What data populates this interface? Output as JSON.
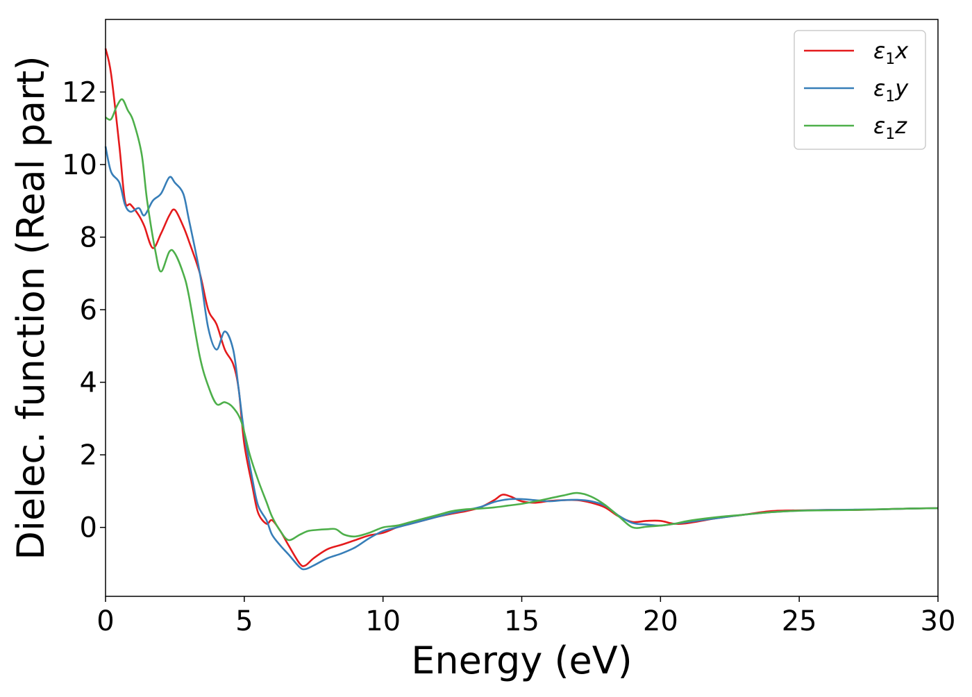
{
  "chart_data": {
    "type": "line",
    "xlabel": "Energy (eV)",
    "ylabel": "Dielec. function (Real part)",
    "xlim": [
      0,
      30
    ],
    "ylim": [
      -1.9,
      14.0
    ],
    "x_ticks": [
      "0",
      "5",
      "10",
      "15",
      "20",
      "25",
      "30"
    ],
    "y_ticks": [
      "0",
      "2",
      "4",
      "6",
      "8",
      "10",
      "12"
    ],
    "grid": false,
    "legend_position": "top-right",
    "series": [
      {
        "name": "ε₁x",
        "legend_base": "ε",
        "legend_sub": "1",
        "legend_suffix": "x",
        "color": "#e41a1c",
        "x": [
          0,
          0.2,
          0.5,
          0.7,
          0.9,
          1.2,
          1.4,
          1.7,
          2.0,
          2.3,
          2.5,
          2.8,
          3.0,
          3.4,
          3.7,
          4.0,
          4.3,
          4.6,
          4.8,
          5.0,
          5.3,
          5.5,
          5.8,
          6.0,
          6.3,
          6.6,
          7.0,
          7.2,
          7.5,
          8.0,
          8.5,
          9.0,
          9.5,
          10.0,
          10.5,
          11.0,
          11.5,
          12.0,
          12.5,
          13.0,
          13.5,
          14.0,
          14.3,
          14.6,
          15.0,
          15.5,
          16.0,
          16.5,
          17.0,
          17.5,
          18.0,
          18.5,
          19.0,
          19.5,
          20.0,
          20.5,
          21.0,
          22.0,
          23.0,
          24.0,
          25.0,
          26.0,
          27.0,
          28.0,
          29.0,
          30.0
        ],
        "y": [
          13.2,
          12.5,
          10.5,
          9.0,
          8.9,
          8.6,
          8.3,
          7.7,
          8.1,
          8.6,
          8.75,
          8.3,
          7.9,
          7.0,
          6.0,
          5.6,
          4.9,
          4.5,
          3.8,
          2.3,
          1.1,
          0.4,
          0.1,
          0.2,
          -0.1,
          -0.5,
          -1.0,
          -1.05,
          -0.85,
          -0.6,
          -0.48,
          -0.35,
          -0.22,
          -0.15,
          0.0,
          0.1,
          0.2,
          0.3,
          0.38,
          0.45,
          0.55,
          0.75,
          0.9,
          0.85,
          0.72,
          0.68,
          0.73,
          0.75,
          0.75,
          0.68,
          0.55,
          0.3,
          0.15,
          0.18,
          0.18,
          0.1,
          0.12,
          0.25,
          0.35,
          0.45,
          0.47,
          0.48,
          0.48,
          0.5,
          0.52,
          0.53
        ]
      },
      {
        "name": "ε₁y",
        "legend_base": "ε",
        "legend_sub": "1",
        "legend_suffix": "y",
        "color": "#377eb8",
        "x": [
          0,
          0.2,
          0.5,
          0.7,
          0.9,
          1.2,
          1.4,
          1.7,
          2.0,
          2.3,
          2.5,
          2.8,
          3.0,
          3.4,
          3.7,
          4.0,
          4.3,
          4.6,
          4.8,
          5.0,
          5.3,
          5.5,
          5.8,
          6.0,
          6.3,
          6.6,
          7.0,
          7.2,
          7.5,
          8.0,
          8.5,
          9.0,
          9.5,
          10.0,
          10.5,
          11.0,
          11.5,
          12.0,
          12.5,
          13.0,
          13.5,
          14.0,
          14.3,
          14.6,
          15.0,
          15.5,
          16.0,
          16.5,
          17.0,
          17.5,
          18.0,
          18.5,
          19.0,
          19.5,
          20.0,
          20.5,
          21.0,
          22.0,
          23.0,
          24.0,
          25.0,
          26.0,
          27.0,
          28.0,
          29.0,
          30.0
        ],
        "y": [
          10.5,
          9.8,
          9.5,
          8.9,
          8.7,
          8.8,
          8.6,
          9.0,
          9.2,
          9.65,
          9.5,
          9.2,
          8.5,
          7.0,
          5.5,
          4.9,
          5.4,
          4.9,
          3.8,
          2.6,
          1.3,
          0.6,
          0.2,
          -0.2,
          -0.5,
          -0.75,
          -1.1,
          -1.15,
          -1.05,
          -0.85,
          -0.72,
          -0.55,
          -0.3,
          -0.1,
          0.0,
          0.1,
          0.2,
          0.3,
          0.4,
          0.48,
          0.56,
          0.7,
          0.75,
          0.78,
          0.78,
          0.75,
          0.72,
          0.75,
          0.76,
          0.72,
          0.6,
          0.32,
          0.12,
          0.08,
          0.05,
          0.1,
          0.15,
          0.25,
          0.35,
          0.42,
          0.46,
          0.48,
          0.49,
          0.5,
          0.52,
          0.53
        ]
      },
      {
        "name": "ε₁z",
        "legend_base": "ε",
        "legend_sub": "1",
        "legend_suffix": "z",
        "color": "#4daf4a",
        "x": [
          0,
          0.2,
          0.4,
          0.6,
          0.8,
          1.0,
          1.3,
          1.5,
          1.8,
          2.0,
          2.3,
          2.5,
          2.8,
          3.0,
          3.4,
          3.7,
          4.0,
          4.3,
          4.6,
          4.9,
          5.2,
          5.5,
          5.8,
          6.0,
          6.3,
          6.6,
          7.0,
          7.3,
          7.6,
          8.0,
          8.3,
          8.6,
          9.0,
          9.5,
          10.0,
          10.5,
          11.0,
          11.5,
          12.0,
          12.5,
          13.0,
          13.5,
          14.0,
          14.5,
          15.0,
          15.5,
          16.0,
          16.5,
          17.0,
          17.5,
          18.0,
          18.5,
          19.0,
          19.5,
          20.0,
          20.5,
          21.0,
          22.0,
          23.0,
          24.0,
          25.0,
          26.0,
          27.0,
          28.0,
          29.0,
          30.0
        ],
        "y": [
          11.3,
          11.25,
          11.6,
          11.8,
          11.5,
          11.2,
          10.3,
          9.0,
          7.6,
          7.05,
          7.6,
          7.55,
          7.0,
          6.4,
          4.7,
          3.9,
          3.4,
          3.45,
          3.3,
          2.9,
          2.0,
          1.3,
          0.7,
          0.3,
          -0.1,
          -0.35,
          -0.2,
          -0.1,
          -0.07,
          -0.05,
          -0.05,
          -0.2,
          -0.25,
          -0.15,
          0.0,
          0.05,
          0.15,
          0.25,
          0.35,
          0.45,
          0.5,
          0.52,
          0.55,
          0.6,
          0.65,
          0.72,
          0.8,
          0.88,
          0.95,
          0.85,
          0.62,
          0.3,
          0.0,
          0.02,
          0.05,
          0.1,
          0.18,
          0.28,
          0.35,
          0.42,
          0.46,
          0.47,
          0.48,
          0.5,
          0.52,
          0.53
        ]
      }
    ]
  }
}
